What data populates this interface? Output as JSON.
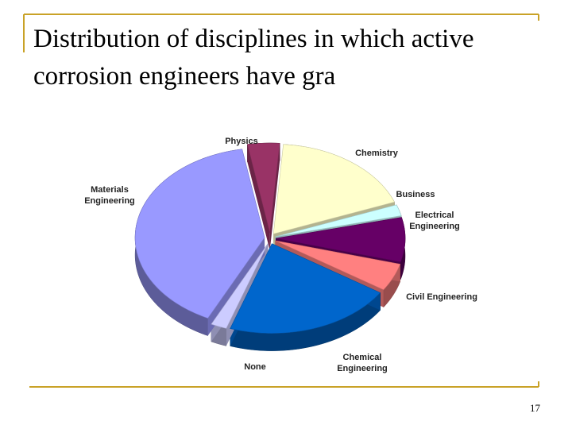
{
  "title": "Distribution of disciplines in which active corrosion engineers have gra",
  "slide_number": 17,
  "chart_data": {
    "type": "pie",
    "categories": [
      "Physics",
      "Chemistry",
      "Business",
      "Electrical Engineering",
      "Civil Engineering",
      "Chemical Engineering",
      "None",
      "Materials Engineering"
    ],
    "values": [
      4,
      18,
      2,
      8,
      5,
      21,
      2,
      40
    ],
    "colors": [
      "#993366",
      "#ffffcc",
      "#ccffff",
      "#660066",
      "#ff8080",
      "#0066cc",
      "#ccccff",
      "#9999ff"
    ]
  }
}
